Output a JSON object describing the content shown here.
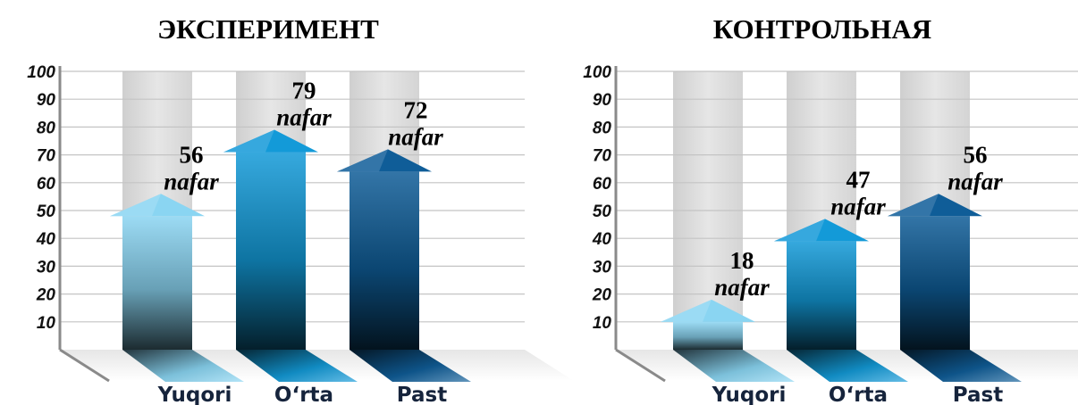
{
  "chart_data": [
    {
      "type": "bar",
      "title": "ЭКСПЕРИМЕНТ",
      "categories": [
        "Yuqori",
        "O‘rta",
        "Past"
      ],
      "values": [
        56,
        79,
        72
      ],
      "value_unit": "nafar",
      "yticks": [
        "10",
        "20",
        "30",
        "40",
        "50",
        "60",
        "70",
        "80",
        "90",
        "100"
      ],
      "ylim": [
        0,
        100
      ],
      "grid": true,
      "colors": [
        "#8ad5f2",
        "#139ad8",
        "#0f5d98"
      ]
    },
    {
      "type": "bar",
      "title": "КОНТРОЛЬНАЯ",
      "categories": [
        "Yuqori",
        "O‘rta",
        "Past"
      ],
      "values": [
        18,
        47,
        56
      ],
      "value_unit": "nafar",
      "yticks": [
        "10",
        "20",
        "30",
        "40",
        "50",
        "60",
        "70",
        "80",
        "90",
        "100"
      ],
      "ylim": [
        0,
        100
      ],
      "grid": true,
      "colors": [
        "#8ad5f2",
        "#139ad8",
        "#0f5d98"
      ]
    }
  ]
}
